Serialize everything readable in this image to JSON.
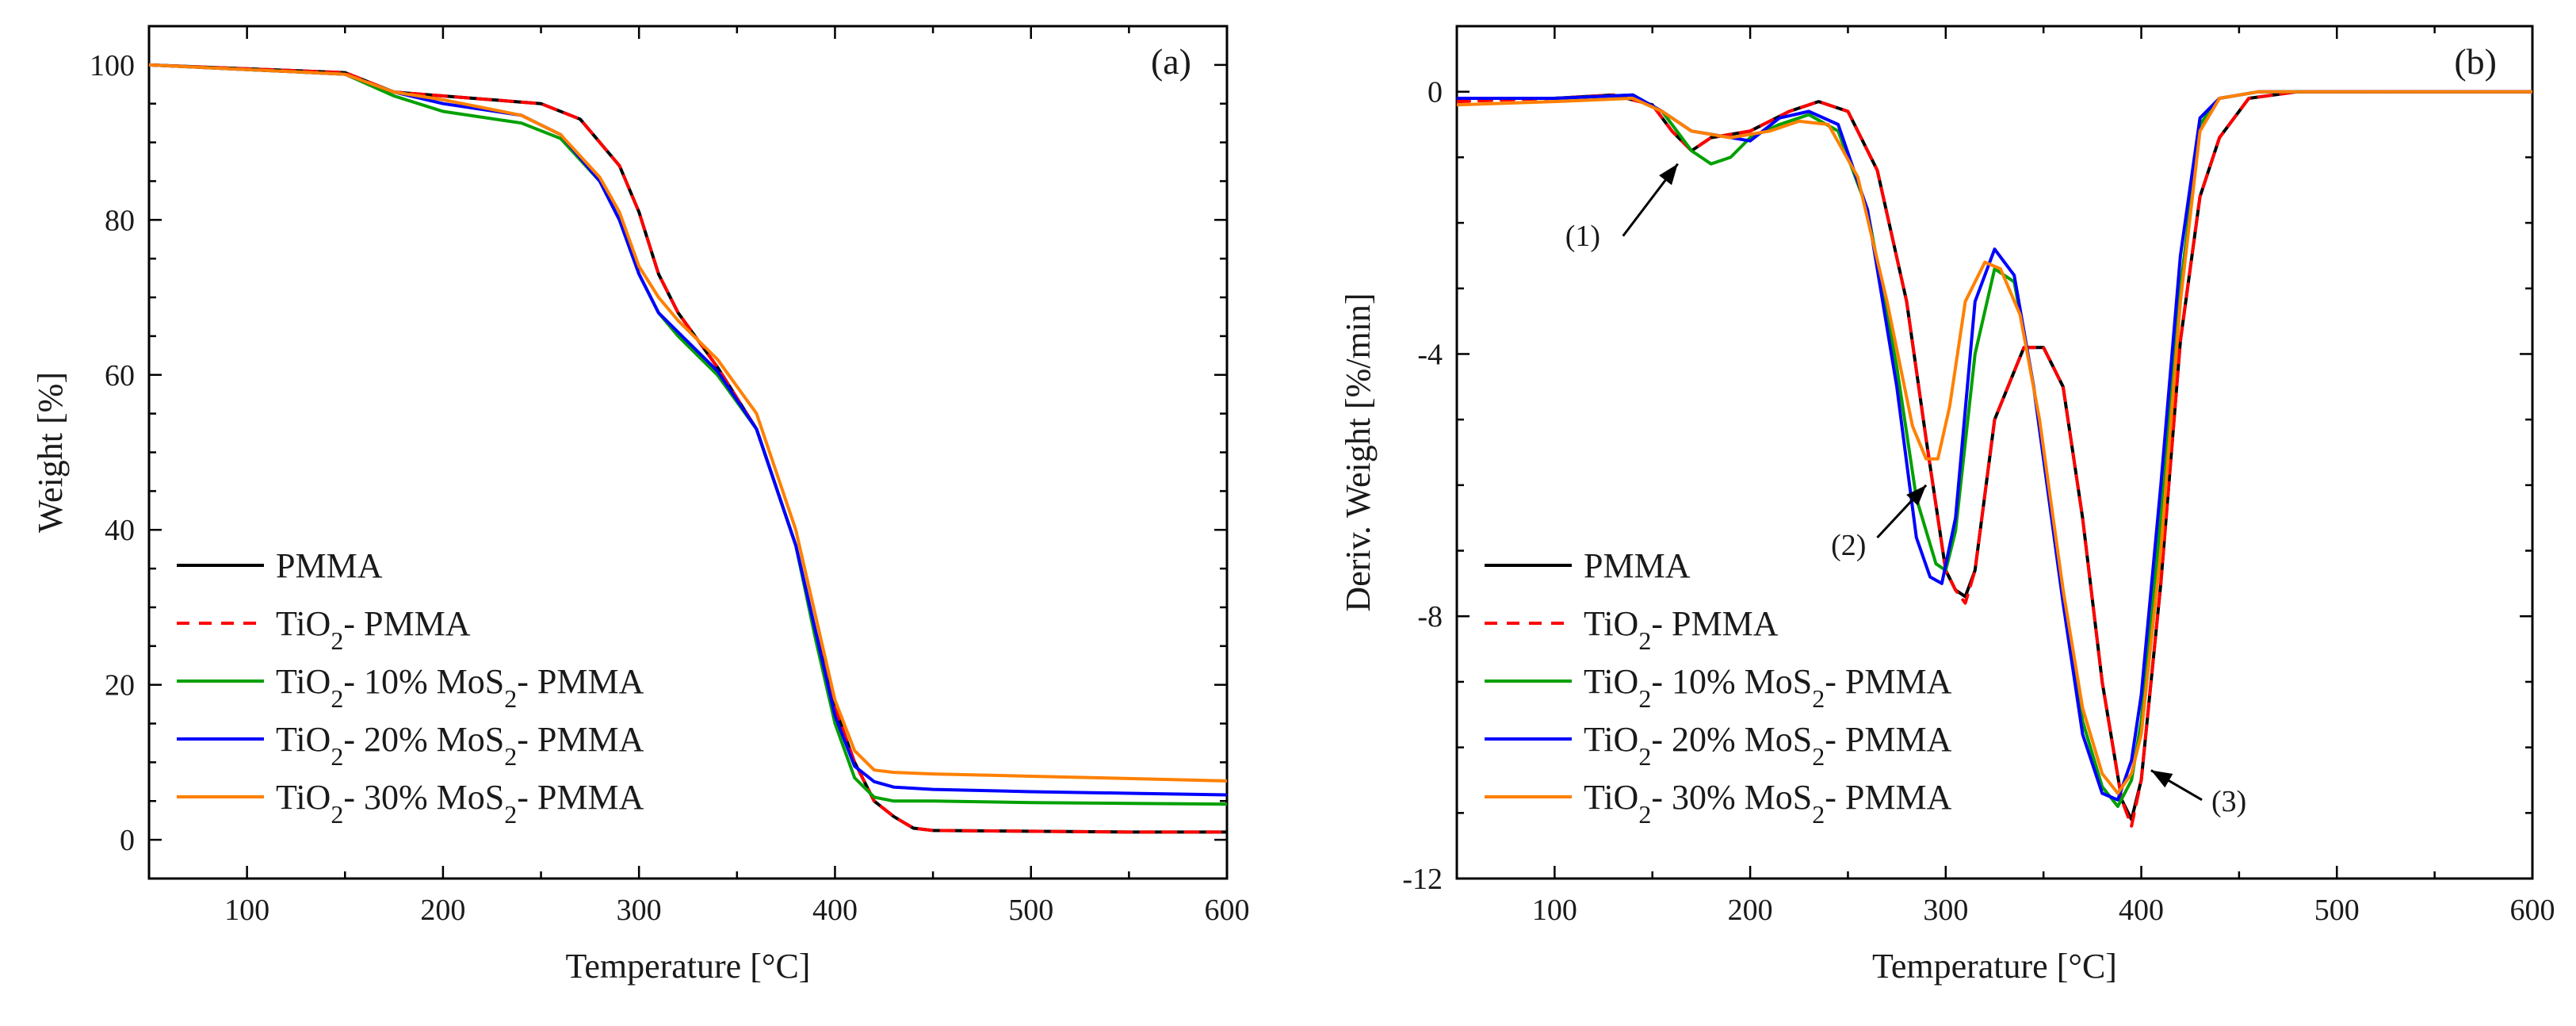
{
  "chart_data": [
    {
      "type": "line",
      "panel_label": "(a)",
      "xlabel": "Temperature [°C]",
      "ylabel": "Weight [%]",
      "xlim": [
        50,
        600
      ],
      "ylim": [
        -5,
        105
      ],
      "xticks": [
        100,
        200,
        300,
        400,
        500,
        600
      ],
      "yticks": [
        0,
        20,
        40,
        60,
        80,
        100
      ],
      "legend": {
        "placement": "bottom-left"
      },
      "series": [
        {
          "name": "PMMA",
          "sub": "",
          "color": "#000000",
          "dash": false,
          "x": [
            50,
            100,
            150,
            175,
            200,
            250,
            270,
            290,
            300,
            310,
            320,
            340,
            360,
            380,
            390,
            400,
            410,
            420,
            430,
            440,
            450,
            500,
            550,
            600
          ],
          "y": [
            100,
            99.5,
            99,
            96.5,
            96,
            95,
            93,
            87,
            81,
            73,
            68,
            61,
            53,
            38,
            27,
            17,
            10,
            5,
            3,
            1.5,
            1.2,
            1.1,
            1,
            1
          ]
        },
        {
          "name": "TiO",
          "sub": "2",
          "tail": "- PMMA",
          "color": "#ff0000",
          "dash": true,
          "x": [
            50,
            100,
            150,
            175,
            200,
            250,
            270,
            290,
            300,
            310,
            320,
            340,
            360,
            380,
            390,
            400,
            410,
            420,
            430,
            440,
            450,
            500,
            550,
            600
          ],
          "y": [
            100,
            99.5,
            99,
            96.5,
            96,
            95,
            93,
            87,
            81,
            73,
            68,
            61,
            53,
            38,
            27,
            17,
            10,
            5,
            3,
            1.5,
            1.2,
            1.1,
            1,
            1
          ]
        },
        {
          "name": "TiO",
          "sub": "2",
          "mid": "- 10% MoS",
          "sub2": "2",
          "tail": "- PMMA",
          "color": "#00a000",
          "dash": false,
          "x": [
            50,
            100,
            150,
            175,
            200,
            240,
            260,
            280,
            290,
            300,
            310,
            320,
            340,
            360,
            380,
            390,
            400,
            410,
            420,
            430,
            450,
            500,
            550,
            600
          ],
          "y": [
            100,
            99.4,
            98.8,
            96,
            94,
            92.5,
            90.5,
            85,
            80,
            73,
            68,
            65,
            60,
            53,
            38,
            26,
            15,
            8,
            5.5,
            5,
            5,
            4.8,
            4.7,
            4.6
          ]
        },
        {
          "name": "TiO",
          "sub": "2",
          "mid": "- 20% MoS",
          "sub2": "2",
          "tail": "- PMMA",
          "color": "#0000ff",
          "dash": false,
          "x": [
            50,
            100,
            150,
            175,
            200,
            240,
            260,
            280,
            290,
            300,
            310,
            320,
            340,
            360,
            380,
            390,
            400,
            410,
            420,
            430,
            450,
            500,
            550,
            600
          ],
          "y": [
            100,
            99.4,
            98.8,
            96.5,
            95,
            93.5,
            91,
            85,
            80,
            73,
            68,
            65.5,
            60.5,
            53,
            38,
            27,
            16,
            9.5,
            7.5,
            6.8,
            6.5,
            6.2,
            6,
            5.8
          ]
        },
        {
          "name": "TiO",
          "sub": "2",
          "mid": "- 30% MoS",
          "sub2": "2",
          "tail": "- PMMA",
          "color": "#ff8000",
          "dash": false,
          "x": [
            50,
            100,
            150,
            175,
            200,
            240,
            260,
            280,
            290,
            300,
            310,
            320,
            340,
            360,
            380,
            390,
            400,
            410,
            420,
            430,
            450,
            500,
            550,
            600
          ],
          "y": [
            100,
            99.4,
            98.8,
            96.5,
            95.5,
            93.5,
            91,
            85.5,
            81,
            74,
            70,
            67,
            62,
            55,
            40,
            29,
            18,
            11.5,
            9,
            8.7,
            8.5,
            8.2,
            7.9,
            7.6
          ]
        }
      ]
    },
    {
      "type": "line",
      "panel_label": "(b)",
      "xlabel": "Temperature [°C]",
      "ylabel": "Deriv. Weight [%/min]",
      "xlim": [
        50,
        600
      ],
      "ylim": [
        -12,
        1
      ],
      "xticks": [
        100,
        200,
        300,
        400,
        500,
        600
      ],
      "yticks": [
        0,
        -4,
        -8,
        -12
      ],
      "legend": {
        "placement": "bottom-left"
      },
      "annotations": [
        {
          "text": "(1)",
          "text_at": [
            125,
            -2.3
          ],
          "arrow_from": [
            135,
            -2.2
          ],
          "arrow_to": [
            163,
            -1.1
          ]
        },
        {
          "text": "(2)",
          "text_at": [
            258,
            -6.5
          ],
          "arrow_from": [
            265,
            -6.8
          ],
          "arrow_to": [
            290,
            -6.0
          ]
        },
        {
          "text": "(3)",
          "text_at": [
            435,
            -10.8
          ],
          "arrow_from": [
            431,
            -10.8
          ],
          "arrow_to": [
            405,
            -10.35
          ]
        }
      ],
      "series": [
        {
          "name": "PMMA",
          "sub": "",
          "color": "#000000",
          "dash": false,
          "x": [
            50,
            100,
            130,
            150,
            160,
            170,
            180,
            200,
            220,
            235,
            250,
            265,
            280,
            290,
            300,
            305,
            310,
            315,
            325,
            340,
            350,
            360,
            370,
            380,
            390,
            395,
            400,
            410,
            420,
            430,
            440,
            455,
            480,
            550,
            600
          ],
          "y": [
            -0.1,
            -0.1,
            -0.05,
            -0.2,
            -0.6,
            -0.9,
            -0.7,
            -0.6,
            -0.3,
            -0.15,
            -0.3,
            -1.2,
            -3.2,
            -5.3,
            -7.3,
            -7.6,
            -7.7,
            -7.3,
            -5.0,
            -3.9,
            -3.9,
            -4.5,
            -6.5,
            -9.0,
            -10.8,
            -11.1,
            -10.5,
            -7.5,
            -3.8,
            -1.6,
            -0.7,
            -0.1,
            0,
            0,
            0
          ]
        },
        {
          "name": "TiO",
          "sub": "2",
          "tail": "- PMMA",
          "color": "#ff0000",
          "dash": true,
          "x": [
            50,
            100,
            130,
            150,
            160,
            170,
            180,
            200,
            220,
            235,
            250,
            265,
            280,
            290,
            300,
            305,
            310,
            315,
            325,
            340,
            350,
            360,
            370,
            380,
            390,
            395,
            400,
            410,
            420,
            430,
            440,
            455,
            480,
            550,
            600
          ],
          "y": [
            -0.15,
            -0.1,
            -0.05,
            -0.2,
            -0.6,
            -0.9,
            -0.7,
            -0.6,
            -0.3,
            -0.15,
            -0.3,
            -1.2,
            -3.2,
            -5.3,
            -7.3,
            -7.6,
            -7.8,
            -7.3,
            -5.0,
            -3.9,
            -3.9,
            -4.5,
            -6.5,
            -9.0,
            -10.8,
            -11.2,
            -10.5,
            -7.5,
            -3.8,
            -1.6,
            -0.7,
            -0.1,
            0,
            0,
            0
          ]
        },
        {
          "name": "TiO",
          "sub": "2",
          "mid": "- 10% MoS",
          "sub2": "2",
          "tail": "- PMMA",
          "color": "#00a000",
          "dash": false,
          "x": [
            50,
            100,
            140,
            155,
            170,
            180,
            190,
            200,
            215,
            230,
            245,
            260,
            275,
            285,
            295,
            300,
            305,
            315,
            325,
            335,
            345,
            360,
            370,
            380,
            388,
            395,
            400,
            410,
            420,
            430,
            440,
            460,
            500,
            600
          ],
          "y": [
            -0.1,
            -0.1,
            -0.05,
            -0.3,
            -0.9,
            -1.1,
            -1.0,
            -0.7,
            -0.5,
            -0.35,
            -0.6,
            -1.8,
            -4.2,
            -6.2,
            -7.2,
            -7.3,
            -6.7,
            -4.0,
            -2.7,
            -2.9,
            -4.5,
            -7.6,
            -9.6,
            -10.6,
            -10.9,
            -10.5,
            -9.6,
            -6.5,
            -3.0,
            -0.5,
            -0.1,
            0,
            0,
            0
          ]
        },
        {
          "name": "TiO",
          "sub": "2",
          "mid": "- 20% MoS",
          "sub2": "2",
          "tail": "- PMMA",
          "color": "#0000ff",
          "dash": false,
          "x": [
            50,
            100,
            140,
            155,
            170,
            180,
            200,
            215,
            230,
            245,
            260,
            275,
            285,
            292,
            298,
            305,
            315,
            325,
            335,
            345,
            360,
            370,
            380,
            388,
            395,
            400,
            410,
            420,
            430,
            440,
            460,
            500,
            600
          ],
          "y": [
            -0.1,
            -0.1,
            -0.05,
            -0.3,
            -0.6,
            -0.65,
            -0.75,
            -0.4,
            -0.3,
            -0.5,
            -1.8,
            -4.5,
            -6.8,
            -7.4,
            -7.5,
            -6.5,
            -3.2,
            -2.4,
            -2.8,
            -4.5,
            -7.8,
            -9.8,
            -10.7,
            -10.8,
            -10.2,
            -9.2,
            -6.0,
            -2.5,
            -0.4,
            -0.1,
            0,
            0,
            0
          ]
        },
        {
          "name": "TiO",
          "sub": "2",
          "mid": "- 30% MoS",
          "sub2": "2",
          "tail": "- PMMA",
          "color": "#ff8000",
          "dash": false,
          "x": [
            50,
            100,
            140,
            155,
            170,
            190,
            210,
            225,
            240,
            255,
            270,
            283,
            290,
            296,
            302,
            310,
            320,
            328,
            338,
            348,
            360,
            370,
            380,
            388,
            395,
            400,
            410,
            420,
            430,
            440,
            460,
            500,
            600
          ],
          "y": [
            -0.2,
            -0.15,
            -0.1,
            -0.3,
            -0.6,
            -0.7,
            -0.6,
            -0.45,
            -0.5,
            -1.3,
            -3.2,
            -5.1,
            -5.6,
            -5.6,
            -4.8,
            -3.2,
            -2.6,
            -2.7,
            -3.4,
            -5.0,
            -7.6,
            -9.4,
            -10.4,
            -10.7,
            -10.4,
            -9.8,
            -7.0,
            -3.2,
            -0.6,
            -0.1,
            0,
            0,
            0
          ]
        }
      ]
    }
  ]
}
